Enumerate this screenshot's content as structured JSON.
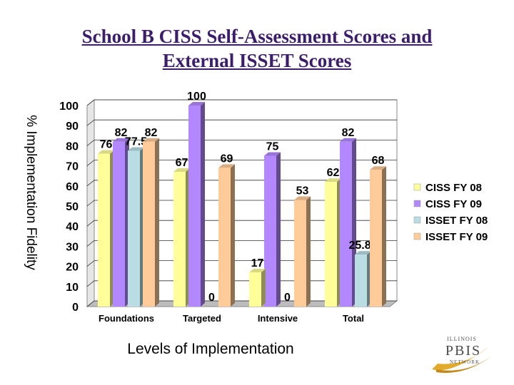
{
  "title_line1": "School B CISS Self-Assessment Scores and",
  "title_line2": "External ISSET Scores",
  "logo": {
    "line1": "ILLINOIS",
    "line2": "PBIS",
    "line3": "NETWORK"
  },
  "chart_data": {
    "type": "bar",
    "title": "School B CISS Self-Assessment Scores and External ISSET Scores",
    "xlabel": "Levels of Implementation",
    "ylabel": "% Implementation Fidelity",
    "ylim": [
      0,
      100
    ],
    "yticks": [
      "0",
      "10",
      "20",
      "30",
      "40",
      "50",
      "60",
      "70",
      "80",
      "90",
      "100"
    ],
    "categories": [
      "Foundations",
      "Targeted",
      "Intensive",
      "Total"
    ],
    "legend_position": "right",
    "series": [
      {
        "name": "CISS FY 08",
        "color": "#ffff99",
        "values": [
          76,
          67,
          null,
          62
        ],
        "labels": [
          "76",
          "67",
          "",
          "62"
        ]
      },
      {
        "name": "CISS FY 09",
        "color": "#b388ff",
        "values": [
          82,
          100,
          75,
          82
        ],
        "labels": [
          "82",
          "100",
          "75",
          "82"
        ]
      },
      {
        "name": "ISSET FY 08",
        "color": "#b9dde3",
        "values": [
          77.5,
          null,
          null,
          25.83
        ],
        "labels": [
          "77.5",
          "",
          "",
          "25.83"
        ]
      },
      {
        "name": "ISSET FY 09",
        "color": "#ffcc99",
        "values": [
          82,
          69,
          53,
          68
        ],
        "labels": [
          "82",
          "69",
          "53",
          "68"
        ]
      }
    ],
    "extra_series": [
      {
        "name": "CISS FY 08",
        "category": "Intensive",
        "value": 17,
        "label": "17"
      }
    ],
    "zero_labels": [
      {
        "category": "Targeted",
        "label": "0"
      },
      {
        "category": "Intensive",
        "label": "0"
      }
    ]
  }
}
